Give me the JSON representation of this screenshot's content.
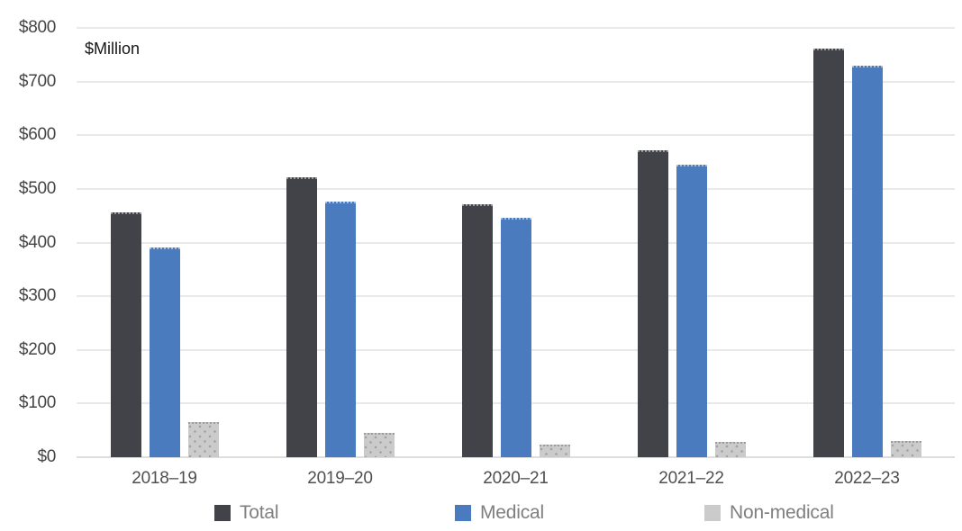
{
  "chart_data": {
    "type": "bar",
    "title": "",
    "unit_label": "$Million",
    "categories": [
      "2018–19",
      "2019–20",
      "2020–21",
      "2021–22",
      "2022–23"
    ],
    "series": [
      {
        "name": "Total",
        "color": "#414348",
        "values": [
          456,
          522,
          471,
          572,
          762
        ]
      },
      {
        "name": "Medical",
        "color": "#4a7bbf",
        "values": [
          390,
          476,
          446,
          545,
          730
        ]
      },
      {
        "name": "Non-medical",
        "color": "#cbcbcb",
        "pattern": "dots",
        "values": [
          65,
          45,
          24,
          28,
          31
        ]
      }
    ],
    "y_axis": {
      "min": 0,
      "max": 800,
      "tick_step": 100,
      "ticks": [
        "$0",
        "$100",
        "$200",
        "$300",
        "$400",
        "$500",
        "$600",
        "$700",
        "$800"
      ]
    },
    "xlabel": "",
    "ylabel": "$Million",
    "grid": true,
    "legend_position": "bottom"
  },
  "colors": {
    "background": "#ffffff",
    "gridline": "#e9e9e9",
    "zero_line": "#dedede",
    "y_tick_text": "#454545",
    "x_tick_text": "#4f4f4f",
    "legend_text": "#7f7f7f",
    "unit_text": "#161616"
  }
}
